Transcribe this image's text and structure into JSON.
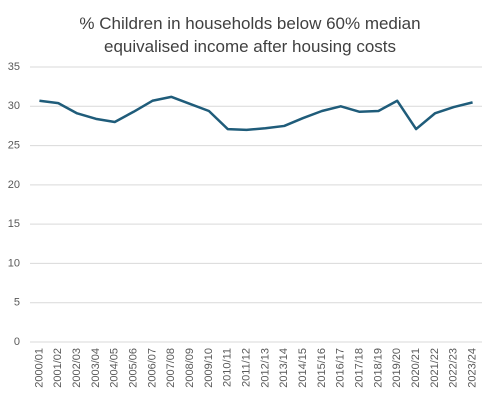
{
  "chart_data": {
    "type": "line",
    "title": "% Children in households below 60% median equivalised income after housing costs",
    "categories": [
      "2000/01",
      "2001/02",
      "2002/03",
      "2003/04",
      "2004/05",
      "2005/06",
      "2006/07",
      "2007/08",
      "2008/09",
      "2009/10",
      "2010/11",
      "2011/12",
      "2012/13",
      "2013/14",
      "2014/15",
      "2015/16",
      "2016/17",
      "2017/18",
      "2018/19",
      "2019/20",
      "2020/21",
      "2021/22",
      "2022/23",
      "2023/24"
    ],
    "values": [
      30.7,
      30.4,
      29.1,
      28.4,
      28.0,
      29.3,
      30.7,
      31.2,
      30.3,
      29.4,
      27.1,
      27.0,
      27.2,
      27.5,
      28.5,
      29.4,
      30.0,
      29.3,
      29.4,
      30.7,
      27.1,
      29.1,
      29.9,
      30.5
    ],
    "color": "#1f5c7a",
    "ylim": [
      0,
      35
    ],
    "yticks": [
      0,
      5,
      10,
      15,
      20,
      25,
      30,
      35
    ],
    "grid": true
  }
}
